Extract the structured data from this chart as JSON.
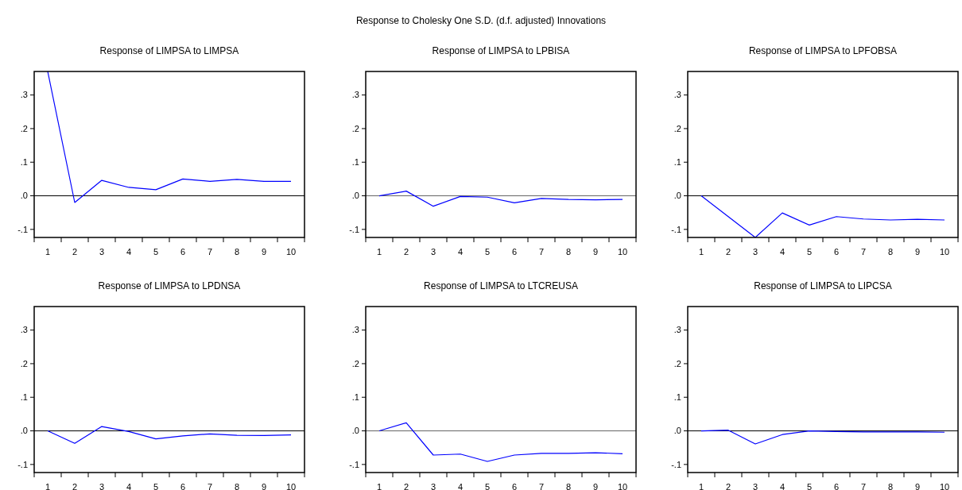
{
  "chart_data": [
    {
      "type": "line",
      "title": "Response of LIMPSA to LIMPSA",
      "annotations": [
        "Response to Cholesky One S.D. (d.f. adjusted) Innovations"
      ],
      "categories": [
        "1",
        "2",
        "3",
        "4",
        "5",
        "6",
        "7",
        "8",
        "9",
        "10"
      ],
      "series": [
        {
          "color": "#0000ff",
          "values": [
            0.37,
            -0.02,
            0.046,
            0.025,
            0.018,
            0.05,
            0.043,
            0.049,
            0.043,
            0.043
          ]
        }
      ],
      "ylim": [
        -0.124,
        0.37
      ],
      "yticks": [
        {
          "value": -0.1,
          "label": "-.1"
        },
        {
          "value": 0,
          "label": ".0"
        },
        {
          "value": 0.1,
          "label": ".1"
        },
        {
          "value": 0.2,
          "label": ".2"
        },
        {
          "value": 0.3,
          "label": ".3"
        }
      ],
      "ref_lines": [
        {
          "axis": "y",
          "value": 0,
          "color": "#000000"
        }
      ],
      "marker": "none"
    },
    {
      "type": "line",
      "title": "Response of LIMPSA to LPBISA",
      "categories": [
        "1",
        "2",
        "3",
        "4",
        "5",
        "6",
        "7",
        "8",
        "9",
        "10"
      ],
      "series": [
        {
          "color": "#0000ff",
          "values": [
            0,
            0.014,
            -0.031,
            -0.002,
            -0.004,
            -0.021,
            -0.008,
            -0.011,
            -0.012,
            -0.011
          ]
        }
      ],
      "ylim": [
        -0.124,
        0.37
      ],
      "yticks": [
        {
          "value": -0.1,
          "label": "-.1"
        },
        {
          "value": 0,
          "label": ".0"
        },
        {
          "value": 0.1,
          "label": ".1"
        },
        {
          "value": 0.2,
          "label": ".2"
        },
        {
          "value": 0.3,
          "label": ".3"
        }
      ],
      "ref_lines": [
        {
          "axis": "y",
          "value": 0,
          "color": "#666666"
        }
      ],
      "marker": "none"
    },
    {
      "type": "line",
      "title": "Response of LIMPSA to LPFOBSA",
      "categories": [
        "1",
        "2",
        "3",
        "4",
        "5",
        "6",
        "7",
        "8",
        "9",
        "10"
      ],
      "series": [
        {
          "color": "#0000ff",
          "values": [
            0,
            -0.062,
            -0.124,
            -0.051,
            -0.087,
            -0.062,
            -0.069,
            -0.072,
            -0.07,
            -0.072
          ]
        }
      ],
      "ylim": [
        -0.124,
        0.37
      ],
      "yticks": [
        {
          "value": -0.1,
          "label": "-.1"
        },
        {
          "value": 0,
          "label": ".0"
        },
        {
          "value": 0.1,
          "label": ".1"
        },
        {
          "value": 0.2,
          "label": ".2"
        },
        {
          "value": 0.3,
          "label": ".3"
        }
      ],
      "ref_lines": [
        {
          "axis": "y",
          "value": 0,
          "color": "#000000"
        }
      ],
      "marker": "none"
    },
    {
      "type": "line",
      "title": "Response of LIMPSA to LPDNSA",
      "categories": [
        "1",
        "2",
        "3",
        "4",
        "5",
        "6",
        "7",
        "8",
        "9",
        "10"
      ],
      "series": [
        {
          "color": "#0000ff",
          "values": [
            0,
            -0.037,
            0.013,
            -0.002,
            -0.024,
            -0.015,
            -0.009,
            -0.013,
            -0.014,
            -0.012
          ]
        }
      ],
      "ylim": [
        -0.124,
        0.37
      ],
      "yticks": [
        {
          "value": -0.1,
          "label": "-.1"
        },
        {
          "value": 0,
          "label": ".0"
        },
        {
          "value": 0.1,
          "label": ".1"
        },
        {
          "value": 0.2,
          "label": ".2"
        },
        {
          "value": 0.3,
          "label": ".3"
        }
      ],
      "ref_lines": [
        {
          "axis": "y",
          "value": 0,
          "color": "#000000"
        }
      ],
      "marker": "none"
    },
    {
      "type": "line",
      "title": "Response of LIMPSA to LTCREUSA",
      "categories": [
        "1",
        "2",
        "3",
        "4",
        "5",
        "6",
        "7",
        "8",
        "9",
        "10"
      ],
      "series": [
        {
          "color": "#0000ff",
          "values": [
            0,
            0.024,
            -0.072,
            -0.069,
            -0.091,
            -0.072,
            -0.067,
            -0.067,
            -0.065,
            -0.068
          ]
        }
      ],
      "ylim": [
        -0.124,
        0.37
      ],
      "yticks": [
        {
          "value": -0.1,
          "label": "-.1"
        },
        {
          "value": 0,
          "label": ".0"
        },
        {
          "value": 0.1,
          "label": ".1"
        },
        {
          "value": 0.2,
          "label": ".2"
        },
        {
          "value": 0.3,
          "label": ".3"
        }
      ],
      "ref_lines": [
        {
          "axis": "y",
          "value": 0,
          "color": "#666666"
        }
      ],
      "marker": "none"
    },
    {
      "type": "line",
      "title": "Response of LIMPSA to LIPCSA",
      "categories": [
        "1",
        "2",
        "3",
        "4",
        "5",
        "6",
        "7",
        "8",
        "9",
        "10"
      ],
      "series": [
        {
          "color": "#0000ff",
          "values": [
            0,
            0.002,
            -0.039,
            -0.011,
            0,
            -0.002,
            -0.003,
            -0.003,
            -0.003,
            -0.004
          ]
        }
      ],
      "ylim": [
        -0.124,
        0.37
      ],
      "yticks": [
        {
          "value": -0.1,
          "label": "-.1"
        },
        {
          "value": 0,
          "label": ".0"
        },
        {
          "value": 0.1,
          "label": ".1"
        },
        {
          "value": 0.2,
          "label": ".2"
        },
        {
          "value": 0.3,
          "label": ".3"
        }
      ],
      "ref_lines": [
        {
          "axis": "y",
          "value": 0,
          "color": "#000000"
        }
      ],
      "marker": "none"
    }
  ]
}
